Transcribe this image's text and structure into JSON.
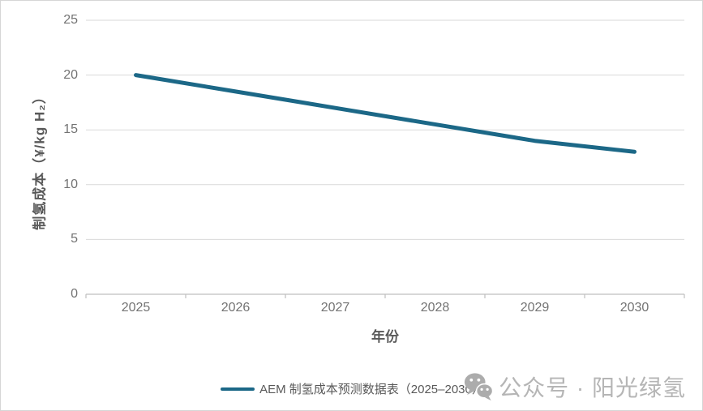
{
  "chart_data": {
    "type": "line",
    "title": "",
    "categories": [
      "2025",
      "2026",
      "2027",
      "2028",
      "2029",
      "2030"
    ],
    "series": [
      {
        "name": "AEM 制氢成本预测数据表（2025–2030）",
        "values": [
          20,
          18.5,
          17,
          15.5,
          14,
          13
        ],
        "color": "#1C6887"
      }
    ],
    "xlabel": "年份",
    "ylabel": "制氢成本（¥/kg H₂）",
    "ylim": [
      0,
      25
    ],
    "yticks": [
      0,
      5,
      10,
      15,
      20,
      25
    ],
    "grid": true,
    "legend_position": "bottom",
    "colors": {
      "line": "#1C6887",
      "gridline": "#D9D9D9",
      "axis": "#BFBFBF",
      "tick_label": "#737373",
      "axis_title": "#595959",
      "legend_text": "#595959",
      "watermark": "#B5B5B5"
    }
  },
  "legend": {
    "items": [
      {
        "label": "AEM 制氢成本预测数据表（2025–2030）",
        "color": "#1C6887"
      }
    ]
  },
  "watermark": {
    "icon": "wechat-icon",
    "text": "公众号 · 阳光绿氢"
  }
}
